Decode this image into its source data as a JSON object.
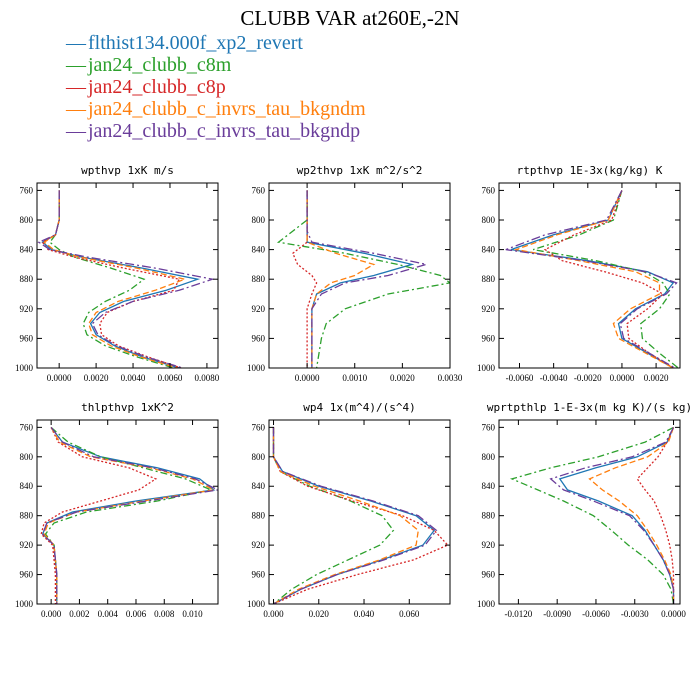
{
  "title": "CLUBB VAR at260E,-2N",
  "legend": [
    {
      "label": "flthist134.000f_xp2_revert",
      "color": "#1f77b4",
      "dash": "solid"
    },
    {
      "label": "jan24_clubb_c8m",
      "color": "#2ca02c",
      "dash": "7,3,2,3"
    },
    {
      "label": "jan24_clubb_c8p",
      "color": "#d62728",
      "dash": "2,2"
    },
    {
      "label": "jan24_clubb_c_invrs_tau_bkgndm",
      "color": "#ff7f0e",
      "dash": "6,3"
    },
    {
      "label": "jan24_clubb_c_invrs_tau_bkgndp",
      "color": "#6a3d9a",
      "dash": "9,3,2,3"
    }
  ],
  "chart_data": [
    {
      "type": "line",
      "title": "wpthvp  1xK m/s",
      "xlim": [
        -0.0012,
        0.0086
      ],
      "ylim": [
        1000,
        750
      ],
      "xticks": [
        0.0,
        0.002,
        0.004,
        0.006,
        0.008
      ],
      "xtick_labels": [
        "0.0000",
        "0.0020",
        "0.0040",
        "0.0060",
        "0.0080"
      ],
      "yticks": [
        760,
        800,
        840,
        880,
        920,
        960,
        1000
      ],
      "y": [
        760,
        800,
        820,
        830,
        840,
        850,
        865,
        880,
        895,
        910,
        925,
        940,
        955,
        970,
        985,
        1000
      ],
      "series": [
        {
          "values": [
            0.0,
            0.0,
            -0.0002,
            -0.0009,
            -0.0004,
            0.0012,
            0.0045,
            0.0075,
            0.0058,
            0.0035,
            0.0022,
            0.0017,
            0.002,
            0.003,
            0.0045,
            0.0065
          ]
        },
        {
          "values": [
            0.0,
            0.0,
            -0.0002,
            -0.0005,
            0.0,
            0.0008,
            0.0028,
            0.0046,
            0.0038,
            0.0025,
            0.0016,
            0.0013,
            0.0015,
            0.0025,
            0.0042,
            0.0062
          ]
        },
        {
          "values": [
            0.0,
            0.0,
            -0.0002,
            -0.0009,
            -0.0006,
            0.0008,
            0.0035,
            0.0065,
            0.0062,
            0.004,
            0.0026,
            0.0022,
            0.0023,
            0.0032,
            0.0048,
            0.0066
          ]
        },
        {
          "values": [
            0.0,
            0.0,
            -0.0002,
            -0.0008,
            -0.0003,
            0.0011,
            0.0042,
            0.0068,
            0.0052,
            0.0032,
            0.002,
            0.0016,
            0.0018,
            0.0028,
            0.0044,
            0.0064
          ]
        },
        {
          "values": [
            0.0,
            0.0,
            -0.0002,
            -0.0011,
            -0.0005,
            0.0015,
            0.0052,
            0.0083,
            0.0065,
            0.004,
            0.0025,
            0.0018,
            0.0021,
            0.0031,
            0.0047,
            0.0067
          ]
        }
      ]
    },
    {
      "type": "line",
      "title": "wp2thvp  1xK m^2/s^2",
      "xlim": [
        -0.0008,
        0.003
      ],
      "ylim": [
        1000,
        750
      ],
      "xticks": [
        0.0,
        0.001,
        0.002,
        0.003
      ],
      "xtick_labels": [
        "0.0000",
        "0.0010",
        "0.0020",
        "0.0030"
      ],
      "yticks": [
        760,
        800,
        840,
        880,
        920,
        960,
        1000
      ],
      "y": [
        760,
        800,
        815,
        830,
        845,
        860,
        875,
        885,
        900,
        920,
        940,
        960,
        1000
      ],
      "series": [
        {
          "values": [
            0.0,
            0.0,
            0.0,
            0.0,
            0.0012,
            0.0022,
            0.0014,
            0.0007,
            0.0002,
            0.0001,
            0.0001,
            0.0001,
            0.0001
          ]
        },
        {
          "values": [
            0.0,
            0.0,
            -0.0003,
            -0.0006,
            0.0008,
            0.0019,
            0.0028,
            0.003,
            0.0017,
            0.0008,
            0.0004,
            0.0003,
            0.0002
          ]
        },
        {
          "values": [
            0.0,
            0.0,
            0.0,
            0.0,
            -0.0003,
            -0.0002,
            0.0001,
            0.0002,
            0.0001,
            0.0,
            0.0,
            0.0,
            0.0
          ]
        },
        {
          "values": [
            0.0,
            0.0,
            0.0,
            0.0,
            0.0006,
            0.0014,
            0.001,
            0.0005,
            0.0002,
            0.0001,
            0.0001,
            0.0001,
            0.0001
          ]
        },
        {
          "values": [
            0.0,
            0.0,
            0.0,
            0.0001,
            0.0014,
            0.0025,
            0.0017,
            0.0008,
            0.0003,
            0.0001,
            0.0001,
            0.0001,
            0.0001
          ]
        }
      ]
    },
    {
      "type": "line",
      "title": "rtpthvp  1E-3x(kg/kg) K",
      "xlim": [
        -0.0072,
        0.0034
      ],
      "ylim": [
        1000,
        750
      ],
      "xticks": [
        -0.006,
        -0.004,
        -0.002,
        0.0,
        0.002
      ],
      "xtick_labels": [
        "-0.0060",
        "-0.0040",
        "-0.0020",
        "0.0000",
        "0.0020"
      ],
      "yticks": [
        760,
        800,
        840,
        880,
        920,
        960,
        1000
      ],
      "y": [
        760,
        800,
        820,
        840,
        855,
        870,
        885,
        900,
        920,
        940,
        960,
        980,
        1000
      ],
      "series": [
        {
          "values": [
            0.0,
            -0.0008,
            -0.004,
            -0.0065,
            -0.002,
            0.0015,
            0.003,
            0.0025,
            0.0008,
            -0.0002,
            0.0,
            0.0015,
            0.003
          ]
        },
        {
          "values": [
            0.0,
            -0.0005,
            -0.0025,
            -0.0052,
            -0.0015,
            0.0013,
            0.0024,
            0.0028,
            0.0022,
            0.0011,
            0.0012,
            0.0022,
            0.0033
          ]
        },
        {
          "values": [
            0.0,
            -0.0006,
            -0.0028,
            -0.0045,
            -0.0035,
            -0.001,
            0.0012,
            0.0024,
            0.0015,
            0.0003,
            0.0004,
            0.0016,
            0.003
          ]
        },
        {
          "values": [
            0.0,
            -0.0008,
            -0.0038,
            -0.0062,
            -0.0025,
            0.0008,
            0.0022,
            0.0022,
            0.0005,
            -0.0005,
            -0.0002,
            0.0014,
            0.003
          ]
        },
        {
          "values": [
            0.0,
            -0.0009,
            -0.0045,
            -0.0068,
            -0.0022,
            0.0014,
            0.0032,
            0.0026,
            0.0009,
            -0.0001,
            0.0001,
            0.0016,
            0.0031
          ]
        }
      ]
    },
    {
      "type": "line",
      "title": "thlpthvp  1xK^2",
      "xlim": [
        -0.001,
        0.0118
      ],
      "ylim": [
        1000,
        750
      ],
      "xticks": [
        0.0,
        0.002,
        0.004,
        0.006,
        0.008,
        0.01
      ],
      "xtick_labels": [
        "0.000",
        "0.002",
        "0.004",
        "0.006",
        "0.008",
        "0.010"
      ],
      "yticks": [
        760,
        800,
        840,
        880,
        920,
        960,
        1000
      ],
      "y": [
        760,
        780,
        800,
        815,
        830,
        845,
        860,
        875,
        890,
        905,
        920,
        960,
        1000
      ],
      "series": [
        {
          "values": [
            0.0,
            0.0008,
            0.0035,
            0.0075,
            0.0105,
            0.0115,
            0.006,
            0.0015,
            -0.0003,
            -0.0006,
            0.0002,
            0.0004,
            0.0004
          ]
        },
        {
          "values": [
            0.0,
            0.0012,
            0.0035,
            0.0065,
            0.0095,
            0.0113,
            0.0075,
            0.0025,
            0.0002,
            -0.0004,
            0.0002,
            0.0004,
            0.0004
          ]
        },
        {
          "values": [
            0.0,
            0.0005,
            0.0022,
            0.0055,
            0.0074,
            0.0062,
            0.0035,
            0.0008,
            -0.0005,
            -0.0007,
            0.0001,
            0.0003,
            0.0003
          ]
        },
        {
          "values": [
            0.0,
            0.0006,
            0.0028,
            0.007,
            0.01,
            0.0115,
            0.0065,
            0.0018,
            -0.0002,
            -0.0005,
            0.0002,
            0.0004,
            0.0004
          ]
        },
        {
          "values": [
            0.0,
            0.0008,
            0.003,
            0.0072,
            0.0102,
            0.0118,
            0.0068,
            0.0018,
            -0.0003,
            -0.0006,
            0.0002,
            0.0004,
            0.0004
          ]
        }
      ]
    },
    {
      "type": "line",
      "title": "wp4  1x(m^4)/(s^4)",
      "xlim": [
        -0.002,
        0.078
      ],
      "ylim": [
        1000,
        750
      ],
      "xticks": [
        0.0,
        0.02,
        0.04,
        0.06
      ],
      "xtick_labels": [
        "0.000",
        "0.020",
        "0.040",
        "0.060"
      ],
      "yticks": [
        760,
        800,
        840,
        880,
        920,
        960,
        1000
      ],
      "y": [
        760,
        800,
        820,
        840,
        860,
        880,
        900,
        920,
        940,
        960,
        980,
        1000
      ],
      "series": [
        {
          "values": [
            0.0,
            0.0,
            0.004,
            0.02,
            0.043,
            0.063,
            0.071,
            0.066,
            0.048,
            0.028,
            0.012,
            0.0
          ]
        },
        {
          "values": [
            0.0,
            0.0,
            0.003,
            0.016,
            0.034,
            0.048,
            0.053,
            0.047,
            0.033,
            0.019,
            0.008,
            0.0
          ]
        },
        {
          "values": [
            0.0,
            0.0,
            0.003,
            0.015,
            0.035,
            0.057,
            0.071,
            0.077,
            0.062,
            0.037,
            0.015,
            0.0
          ]
        },
        {
          "values": [
            0.0,
            0.0,
            0.003,
            0.018,
            0.038,
            0.056,
            0.064,
            0.063,
            0.047,
            0.027,
            0.011,
            0.0
          ]
        },
        {
          "values": [
            0.0,
            0.0,
            0.004,
            0.021,
            0.044,
            0.064,
            0.072,
            0.067,
            0.049,
            0.028,
            0.012,
            0.0
          ]
        }
      ]
    },
    {
      "type": "line",
      "title": "wprtpthlp  1-E-3x(m kg K)/(s kg)",
      "xlim": [
        -0.0135,
        0.0005
      ],
      "ylim": [
        1000,
        750
      ],
      "xticks": [
        -0.012,
        -0.009,
        -0.006,
        -0.003,
        0.0
      ],
      "xtick_labels": [
        "-0.0120",
        "-0.0090",
        "-0.0060",
        "-0.0030",
        "0.0000"
      ],
      "yticks": [
        760,
        800,
        840,
        880,
        920,
        960,
        1000
      ],
      "y": [
        760,
        780,
        800,
        815,
        830,
        845,
        860,
        880,
        900,
        920,
        940,
        960,
        980,
        1000
      ],
      "series": [
        {
          "values": [
            0.0,
            -0.0005,
            -0.0028,
            -0.006,
            -0.0088,
            -0.0082,
            -0.0058,
            -0.0032,
            -0.0022,
            -0.0015,
            -0.0008,
            -0.0003,
            0.0,
            0.0
          ]
        },
        {
          "values": [
            0.0,
            -0.0022,
            -0.0058,
            -0.0095,
            -0.0125,
            -0.0105,
            -0.0085,
            -0.0062,
            -0.0048,
            -0.0035,
            -0.002,
            -0.0008,
            -0.0002,
            0.0
          ]
        },
        {
          "values": [
            0.0,
            -0.0005,
            -0.0012,
            -0.002,
            -0.0028,
            -0.0022,
            -0.0015,
            -0.001,
            -0.0006,
            -0.0003,
            -0.0001,
            0.0,
            0.0,
            0.0
          ]
        },
        {
          "values": [
            0.0,
            -0.0004,
            -0.002,
            -0.0045,
            -0.0065,
            -0.0055,
            -0.0042,
            -0.0028,
            -0.002,
            -0.0013,
            -0.0007,
            -0.0002,
            0.0,
            0.0
          ]
        },
        {
          "values": [
            0.0,
            -0.0006,
            -0.0032,
            -0.0068,
            -0.0095,
            -0.0085,
            -0.0062,
            -0.0034,
            -0.0023,
            -0.0015,
            -0.0008,
            -0.0003,
            0.0,
            0.0
          ]
        }
      ]
    }
  ]
}
